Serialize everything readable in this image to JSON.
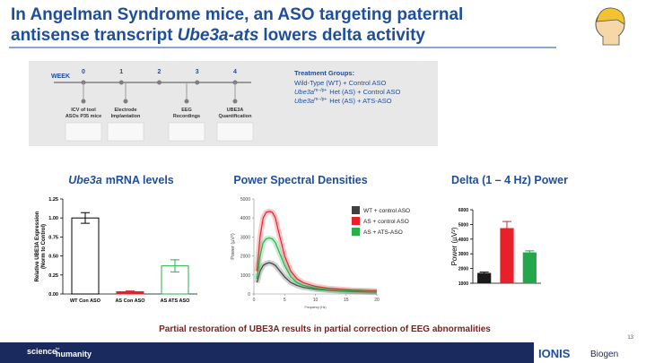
{
  "title": {
    "line1": "In Angelman Syndrome mice, an ASO targeting paternal",
    "line2": [
      "antisense transcript",
      "Ube3a-ats",
      "lowers delta activity"
    ]
  },
  "timeline": {
    "week_label": "WEEK",
    "weeks": [
      0,
      1,
      2,
      3,
      4
    ],
    "events": [
      [
        "ICV of tool",
        "ASOs P35 mice"
      ],
      [
        "Electrode",
        "Implantation"
      ],
      [
        "EEG",
        "Recordings"
      ],
      [
        "UBE3A",
        "Quantification"
      ]
    ]
  },
  "treatment_groups": {
    "heading": "Treatment Groups:",
    "items": [
      {
        "text": "Wild-Type (WT) + Control ASO"
      },
      {
        "gene": "Ube3a",
        "sup": "m−/p+",
        "text": "Het (AS) + Control ASO"
      },
      {
        "gene": "Ube3a",
        "sup": "m−/p+",
        "text": "Het (AS) + ATS-ASO"
      }
    ]
  },
  "chart_data": [
    {
      "type": "bar",
      "title": [
        "Ube3a",
        "mRNA levels"
      ],
      "ylabel": [
        "Relative UBE3A Expression",
        "(Norm to Control)"
      ],
      "categories": [
        "WT Con ASO",
        "AS Con ASO",
        "AS ATS ASO"
      ],
      "values": [
        1.0,
        0.03,
        0.37
      ],
      "errors": [
        0.07,
        0.01,
        0.08
      ],
      "colors": [
        "#000000",
        "#e8202a",
        "#27b14a"
      ],
      "bar_style": "outline",
      "ylim": [
        0,
        1.25
      ],
      "yticks": [
        {
          "value": 0,
          "label": "0.00"
        },
        {
          "value": 0.25,
          "label": "0.25"
        },
        {
          "value": 0.5,
          "label": "0.50"
        },
        {
          "value": 0.75,
          "label": "0.75"
        },
        {
          "value": 1,
          "label": "1.00"
        },
        {
          "value": 1.25,
          "label": "1.25"
        }
      ]
    },
    {
      "type": "line",
      "title": "Power Spectral Densities",
      "xlabel": "Frequency (Hz)",
      "ylabel": "Power (µV²)",
      "x": [
        0.5,
        1,
        1.5,
        2,
        2.5,
        3,
        3.5,
        4,
        5,
        6,
        7,
        8,
        10,
        12,
        14,
        16,
        18,
        20
      ],
      "series": [
        {
          "name": "WT + control ASO",
          "color": "#404040",
          "values": [
            600,
            1200,
            1500,
            1600,
            1650,
            1600,
            1500,
            1300,
            900,
            600,
            450,
            350,
            250,
            200,
            160,
            130,
            110,
            100
          ]
        },
        {
          "name": "AS + control ASO",
          "color": "#e8202a",
          "values": [
            1200,
            3000,
            4000,
            4300,
            4350,
            4300,
            4000,
            3300,
            2000,
            1200,
            800,
            600,
            400,
            300,
            250,
            200,
            180,
            150
          ]
        },
        {
          "name": "AS + ATS-ASO",
          "color": "#27b14a",
          "values": [
            800,
            2000,
            2700,
            2900,
            2950,
            2900,
            2700,
            2300,
            1500,
            900,
            600,
            450,
            300,
            220,
            180,
            150,
            130,
            110
          ]
        }
      ],
      "xlim": [
        0,
        20
      ],
      "xticks": [
        0,
        5,
        10,
        15,
        20
      ],
      "ylim": [
        0,
        5000
      ],
      "yticks": [
        0,
        1000,
        2000,
        3000,
        4000,
        5000
      ]
    },
    {
      "type": "bar",
      "title": "Delta (1 – 4 Hz) Power",
      "ylabel": "Power (µV²)",
      "categories": [
        null,
        null,
        null
      ],
      "values": [
        1700,
        4750,
        3100
      ],
      "errors": [
        60,
        450,
        100
      ],
      "colors": [
        "#1a1a1a",
        "#e8202a",
        "#22a84a"
      ],
      "bar_style": "filled",
      "ylim": [
        1000,
        6000
      ],
      "yticks": [
        1000,
        2000,
        3000,
        4000,
        5000,
        6000
      ]
    }
  ],
  "conclusion": "Partial restoration of UBE3A results in partial correction of EEG abnormalities",
  "footer": {
    "brand": [
      "science",
      "for",
      "humanity"
    ],
    "partners": [
      "IONIS",
      "Biogen"
    ],
    "page": 13
  }
}
